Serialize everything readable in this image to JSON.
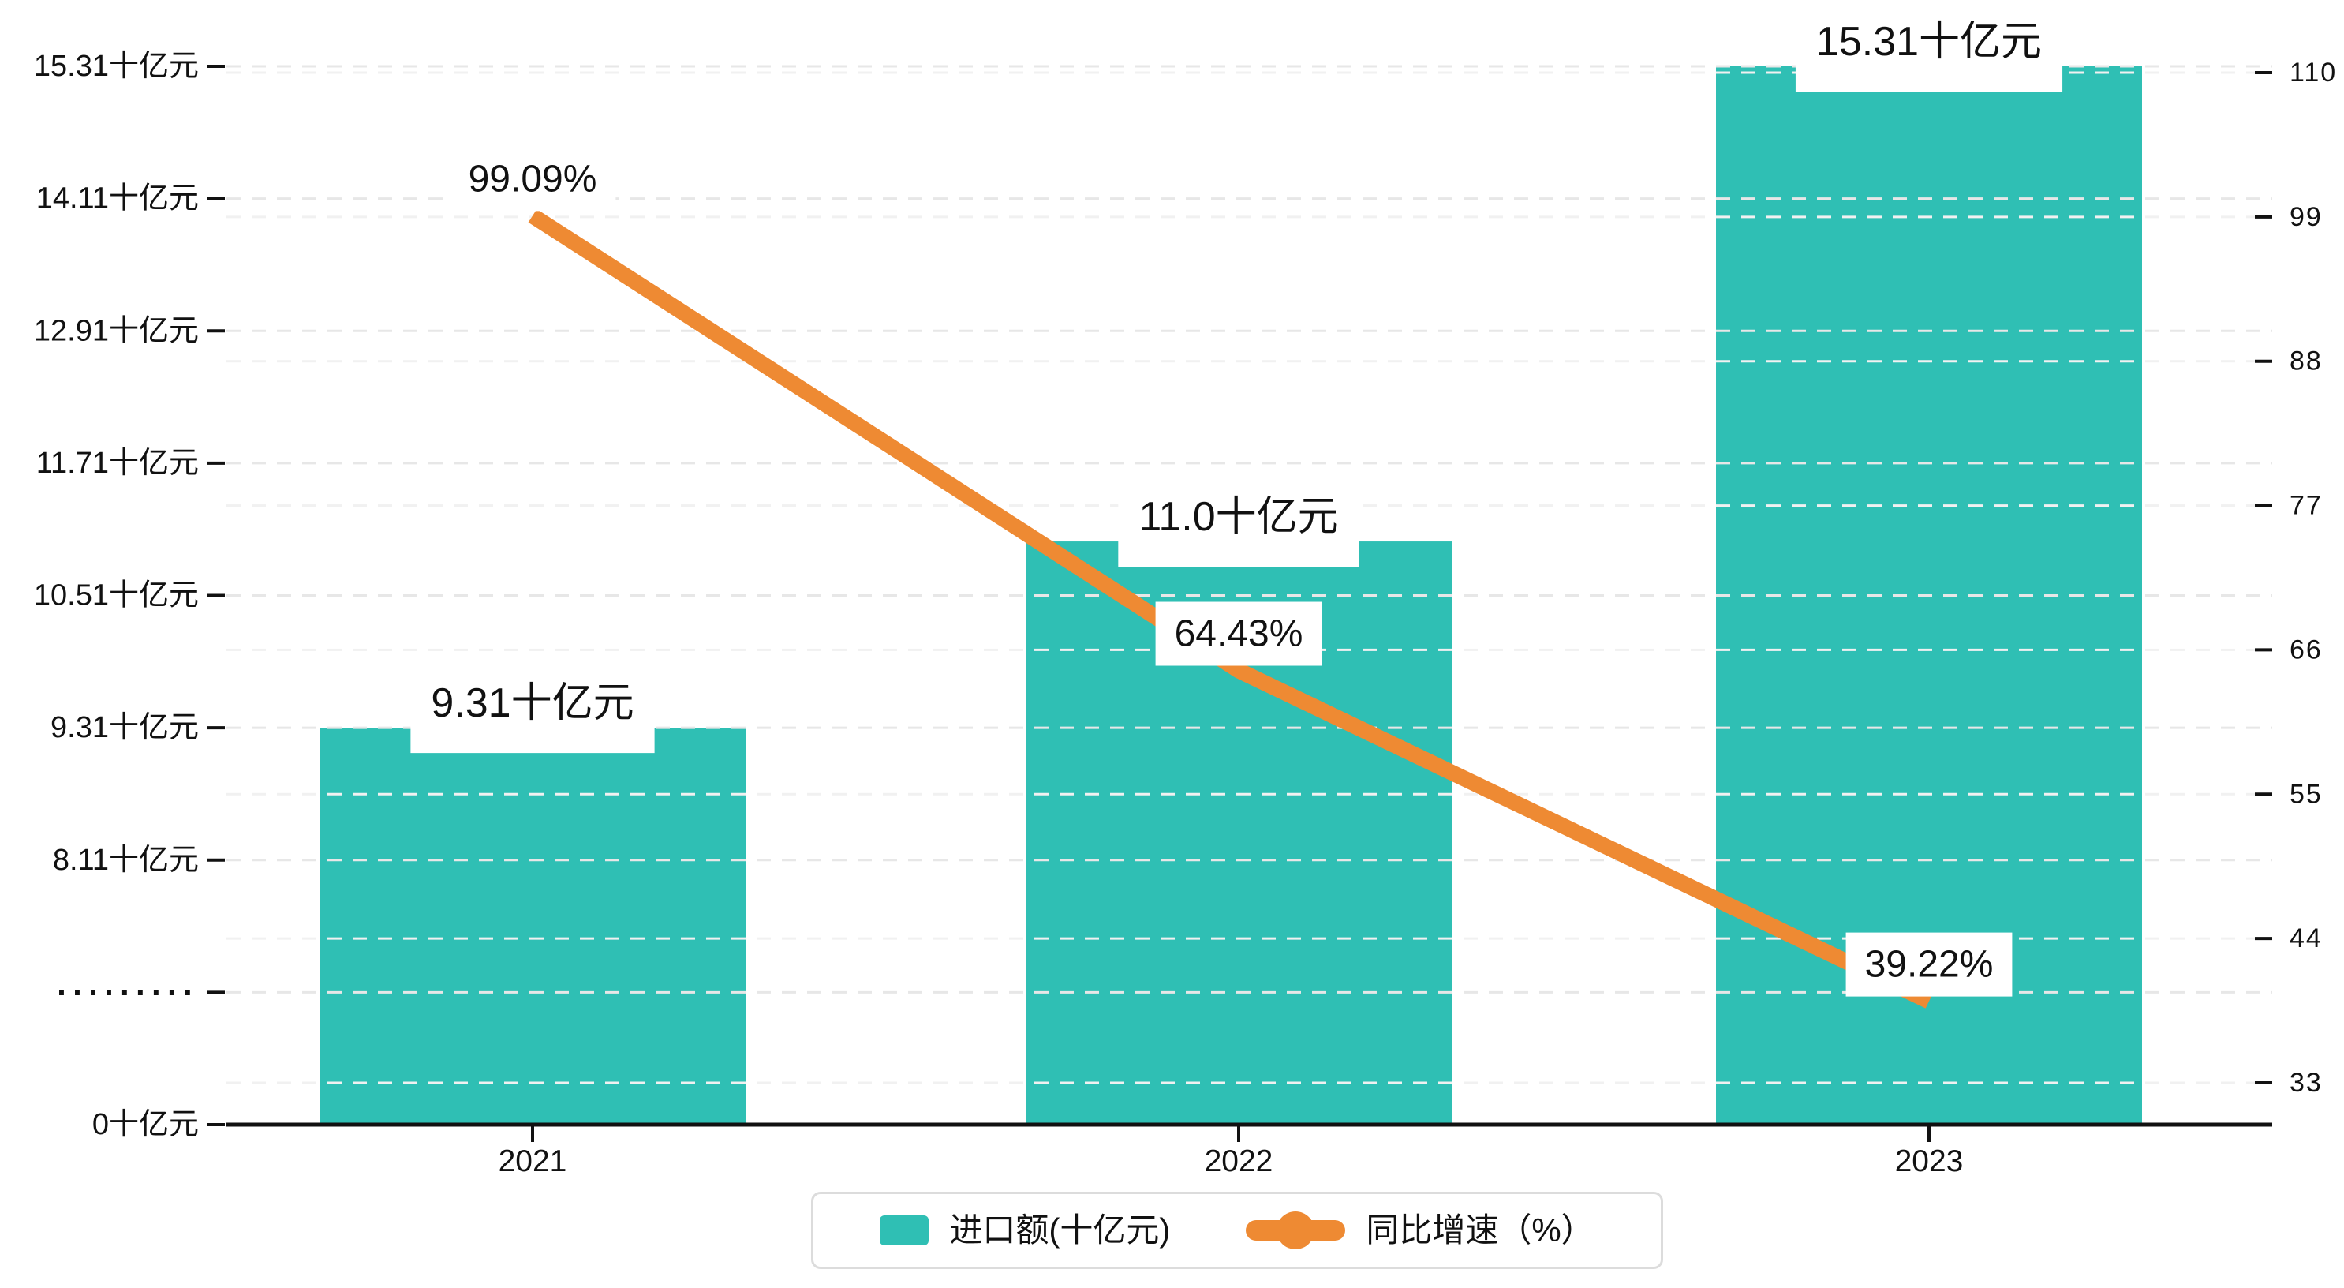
{
  "chart_data": {
    "type": "bar",
    "subtype": "bar-line-combo-dual-axis",
    "categories": [
      "2021",
      "2022",
      "2023"
    ],
    "series": [
      {
        "name": "进口额(十亿元)",
        "type": "bar",
        "axis": "left",
        "values": [
          9.31,
          11.0,
          15.31
        ],
        "data_labels": [
          "9.31十亿元",
          "11.0十亿元",
          "15.31十亿元"
        ],
        "color": "#2FBFB4"
      },
      {
        "name": "同比增速（%）",
        "type": "line",
        "axis": "right",
        "values": [
          99.09,
          64.43,
          39.22
        ],
        "data_labels": [
          "99.09%",
          "64.43%",
          "39.22%"
        ],
        "color": "#EE8A33"
      }
    ],
    "left_axis": {
      "tick_labels": [
        "0十亿元",
        "·········",
        "8.11十亿元",
        "9.31十亿元",
        "10.51十亿元",
        "11.71十亿元",
        "12.91十亿元",
        "14.11十亿元",
        "15.31十亿元"
      ],
      "tick_values": [
        0,
        null,
        8.11,
        9.31,
        10.51,
        11.71,
        12.91,
        14.11,
        15.31
      ],
      "broken_axis": true,
      "break_marker": "·········",
      "unit": "十亿元",
      "step_above_break": 1.2
    },
    "right_axis": {
      "tick_labels": [
        "33",
        "44",
        "55",
        "66",
        "77",
        "88",
        "99",
        "110"
      ],
      "min": 33,
      "max": 110,
      "step": 11
    },
    "legend": {
      "position": "bottom-center",
      "items": [
        {
          "label": "进口额(十亿元)",
          "marker": "bar-swatch",
          "color": "#2FBFB4"
        },
        {
          "label": "同比增速（%）",
          "marker": "line-dot",
          "color": "#EE8A33"
        }
      ]
    },
    "grid": {
      "visible": true,
      "style": "dashed"
    },
    "colors": {
      "bar": "#2FBFB4",
      "line": "#EE8A33",
      "grid_left": "#E7E7E7",
      "grid_right": "#F1F1F1",
      "axis_line": "#111111",
      "text": "#111111",
      "label_background": "#FFFFFF"
    }
  }
}
